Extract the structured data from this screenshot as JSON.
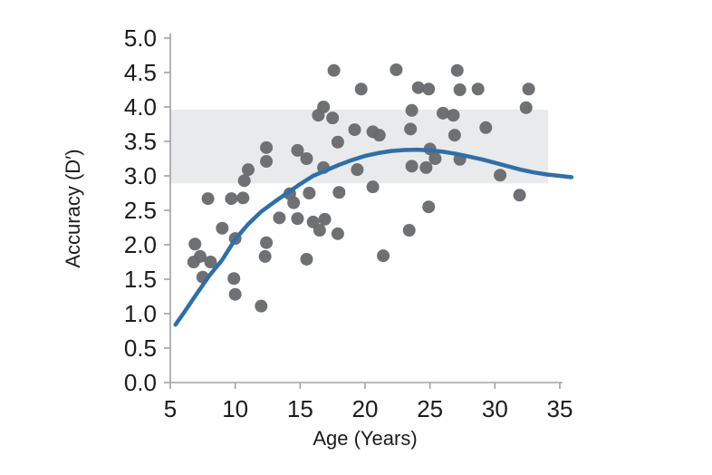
{
  "figure": {
    "background_color": "#ffffff",
    "description": "Scatter plot of response accuracy (D prime) as a function of age with quadratic trend line and shaded adult performance band"
  },
  "chart_data": {
    "type": "scatter",
    "title": "",
    "xlabel": "Age (Years)",
    "ylabel": "Accuracy (D′)",
    "xlim": [
      5,
      35
    ],
    "ylim": [
      0.0,
      5.0
    ],
    "grid": false,
    "legend": "none",
    "x_tick_values": [
      5,
      10,
      15,
      20,
      25,
      30,
      35
    ],
    "x_tick_labels": [
      "5",
      "10",
      "15",
      "20",
      "25",
      "30",
      "35"
    ],
    "y_tick_values": [
      5.0,
      4.5,
      4.0,
      3.5,
      3.0,
      2.5,
      2.0,
      1.5,
      1.0,
      0.5,
      0.0
    ],
    "y_tick_labels": [
      "5.0",
      "4.5",
      "4.0",
      "3.5",
      "3.0",
      "2.5",
      "2.0",
      "1.5",
      "1.0",
      "0.5",
      "0.0"
    ],
    "axis_color": "#a0a2a5",
    "text_color": "#1c1c1c",
    "band": {
      "x_range": [
        5,
        34.1
      ],
      "y_range": [
        2.89,
        3.96
      ],
      "color": "#e9eaec"
    },
    "series": [
      {
        "name": "participants",
        "type": "scatter",
        "color": "#696b6e",
        "marker_radius": 7,
        "points": [
          [
            17.6,
            4.53
          ],
          [
            22.4,
            4.54
          ],
          [
            27.1,
            4.53
          ],
          [
            19.7,
            4.26
          ],
          [
            24.1,
            4.28
          ],
          [
            24.9,
            4.26
          ],
          [
            27.3,
            4.25
          ],
          [
            28.7,
            4.26
          ],
          [
            32.6,
            4.26
          ],
          [
            16.8,
            4.0
          ],
          [
            16.4,
            3.88
          ],
          [
            17.5,
            3.84
          ],
          [
            23.6,
            3.95
          ],
          [
            26.0,
            3.91
          ],
          [
            26.8,
            3.88
          ],
          [
            32.4,
            3.99
          ],
          [
            19.2,
            3.67
          ],
          [
            20.6,
            3.64
          ],
          [
            21.1,
            3.59
          ],
          [
            23.5,
            3.68
          ],
          [
            29.3,
            3.7
          ],
          [
            26.9,
            3.59
          ],
          [
            17.9,
            3.49
          ],
          [
            12.4,
            3.41
          ],
          [
            14.8,
            3.37
          ],
          [
            15.5,
            3.25
          ],
          [
            12.4,
            3.21
          ],
          [
            11.0,
            3.09
          ],
          [
            10.7,
            2.93
          ],
          [
            25.0,
            3.39
          ],
          [
            25.4,
            3.25
          ],
          [
            27.3,
            3.24
          ],
          [
            23.6,
            3.14
          ],
          [
            24.7,
            3.12
          ],
          [
            16.8,
            3.12
          ],
          [
            19.4,
            3.09
          ],
          [
            30.4,
            3.01
          ],
          [
            20.6,
            2.84
          ],
          [
            15.7,
            2.75
          ],
          [
            18.0,
            2.76
          ],
          [
            14.2,
            2.74
          ],
          [
            14.5,
            2.61
          ],
          [
            13.4,
            2.39
          ],
          [
            14.8,
            2.38
          ],
          [
            16.0,
            2.33
          ],
          [
            16.9,
            2.37
          ],
          [
            16.5,
            2.21
          ],
          [
            17.9,
            2.16
          ],
          [
            24.9,
            2.55
          ],
          [
            23.4,
            2.21
          ],
          [
            21.4,
            1.84
          ],
          [
            15.5,
            1.79
          ],
          [
            31.9,
            2.72
          ],
          [
            7.9,
            2.67
          ],
          [
            9.7,
            2.67
          ],
          [
            10.6,
            2.68
          ],
          [
            9.0,
            2.24
          ],
          [
            10.0,
            2.09
          ],
          [
            6.9,
            2.01
          ],
          [
            12.4,
            2.03
          ],
          [
            12.3,
            1.83
          ],
          [
            7.3,
            1.83
          ],
          [
            6.8,
            1.75
          ],
          [
            8.1,
            1.75
          ],
          [
            7.5,
            1.53
          ],
          [
            9.9,
            1.51
          ],
          [
            10.0,
            1.28
          ],
          [
            12.0,
            1.11
          ]
        ]
      },
      {
        "name": "trend",
        "type": "line",
        "color": "#2f6fa8",
        "stroke_width": 4.5,
        "points": [
          [
            5.4,
            0.84
          ],
          [
            6,
            1.0
          ],
          [
            7,
            1.28
          ],
          [
            8,
            1.55
          ],
          [
            9,
            1.78
          ],
          [
            10,
            2.08
          ],
          [
            11,
            2.3
          ],
          [
            12,
            2.48
          ],
          [
            13,
            2.62
          ],
          [
            14,
            2.75
          ],
          [
            15,
            2.88
          ],
          [
            16,
            3.0
          ],
          [
            17,
            3.08
          ],
          [
            18,
            3.16
          ],
          [
            19,
            3.23
          ],
          [
            20,
            3.29
          ],
          [
            21,
            3.33
          ],
          [
            22,
            3.36
          ],
          [
            23,
            3.375
          ],
          [
            24,
            3.38
          ],
          [
            25,
            3.37
          ],
          [
            26,
            3.35
          ],
          [
            27,
            3.32
          ],
          [
            28,
            3.28
          ],
          [
            29,
            3.24
          ],
          [
            30,
            3.19
          ],
          [
            31,
            3.14
          ],
          [
            32,
            3.09
          ],
          [
            33,
            3.05
          ],
          [
            34,
            3.02
          ],
          [
            35,
            3.0
          ],
          [
            35.9,
            2.98
          ]
        ]
      }
    ]
  }
}
